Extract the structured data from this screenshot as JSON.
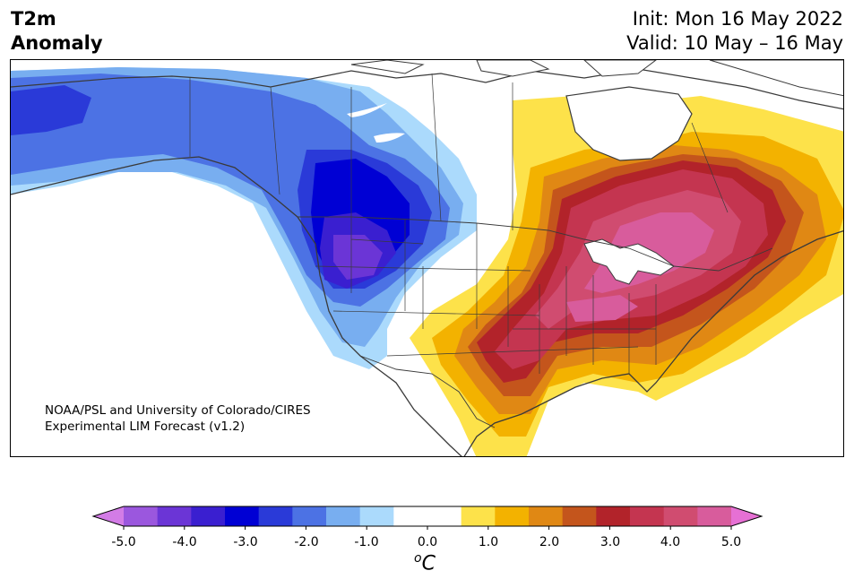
{
  "header": {
    "title_line1": "T2m",
    "title_line2": "Anomaly",
    "init_text": "Init: Mon 16 May 2022",
    "valid_text": "Valid: 10 May – 16 May"
  },
  "map": {
    "credit_line1": "NOAA/PSL and University of Colorado/CIRES",
    "credit_line2": "Experimental LIM Forecast (v1.2)",
    "region": "North America",
    "variable": "2-meter temperature anomaly"
  },
  "colorbar": {
    "unit_base": "C",
    "unit_sup": "o",
    "tick_labels": [
      "-5.0",
      "-4.0",
      "-3.0",
      "-2.0",
      "-1.0",
      "0.0",
      "1.0",
      "2.0",
      "3.0",
      "4.0",
      "5.0"
    ],
    "colors": [
      "#d37ce6",
      "#9b57de",
      "#6b35d6",
      "#3a1fd0",
      "#0000d4",
      "#2a3ad8",
      "#4c72e4",
      "#78aef0",
      "#abdafc",
      "#ffffff",
      "#ffffff",
      "#fde24a",
      "#f3b200",
      "#e08814",
      "#c4551c",
      "#b2232a",
      "#c43550",
      "#d04c70",
      "#d85c9c",
      "#e670d4"
    ],
    "extend": "both"
  }
}
